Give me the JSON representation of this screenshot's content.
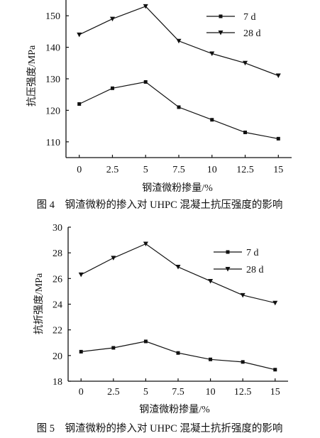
{
  "figures": [
    {
      "caption": "图 4　钢渣微粉的掺入对 UHPC 混凝土抗压强度的影响",
      "chart_data": {
        "type": "line",
        "xlabel": "钢渣微粉掺量/%",
        "ylabel": "抗压强度/MPa",
        "x": [
          0,
          2.5,
          5,
          7.5,
          10,
          12.5,
          15
        ],
        "x_tick_labels": [
          "0",
          "2.5",
          "5",
          "7.5",
          "10",
          "12.5",
          "15"
        ],
        "xlim": [
          -1,
          16
        ],
        "ylim": [
          105,
          155
        ],
        "y_ticks": [
          110,
          120,
          130,
          140,
          150
        ],
        "y_tick_labels": [
          "110",
          "120",
          "130",
          "140",
          "150"
        ],
        "series": [
          {
            "name": "7 d",
            "marker": "square",
            "values": [
              122,
              127,
              129,
              121,
              117,
              113,
              111
            ]
          },
          {
            "name": "28 d",
            "marker": "triangle-down",
            "values": [
              144,
              149,
              153,
              142,
              138,
              135,
              131
            ]
          }
        ],
        "legend_position": "top-right",
        "grid": false
      }
    },
    {
      "caption": "图 5　钢渣微粉的掺入对 UHPC 混凝土抗折强度的影响",
      "chart_data": {
        "type": "line",
        "xlabel": "钢渣微粉掺量/%",
        "ylabel": "抗折强度/MPa",
        "x": [
          0,
          2.5,
          5,
          7.5,
          10,
          12.5,
          15
        ],
        "x_tick_labels": [
          "0",
          "2.5",
          "5",
          "7.5",
          "10",
          "12.5",
          "15"
        ],
        "xlim": [
          -1,
          16
        ],
        "ylim": [
          18,
          30
        ],
        "y_ticks": [
          18,
          20,
          22,
          24,
          26,
          28,
          30
        ],
        "y_tick_labels": [
          "18",
          "20",
          "22",
          "24",
          "26",
          "28",
          "30"
        ],
        "series": [
          {
            "name": "7 d",
            "marker": "square",
            "values": [
              20.3,
              20.6,
              21.1,
              20.2,
              19.7,
              19.5,
              18.9
            ]
          },
          {
            "name": "28 d",
            "marker": "triangle-down",
            "values": [
              26.3,
              27.6,
              28.7,
              26.9,
              25.8,
              24.7,
              24.1
            ]
          }
        ],
        "legend_position": "top-right",
        "grid": false
      }
    }
  ]
}
